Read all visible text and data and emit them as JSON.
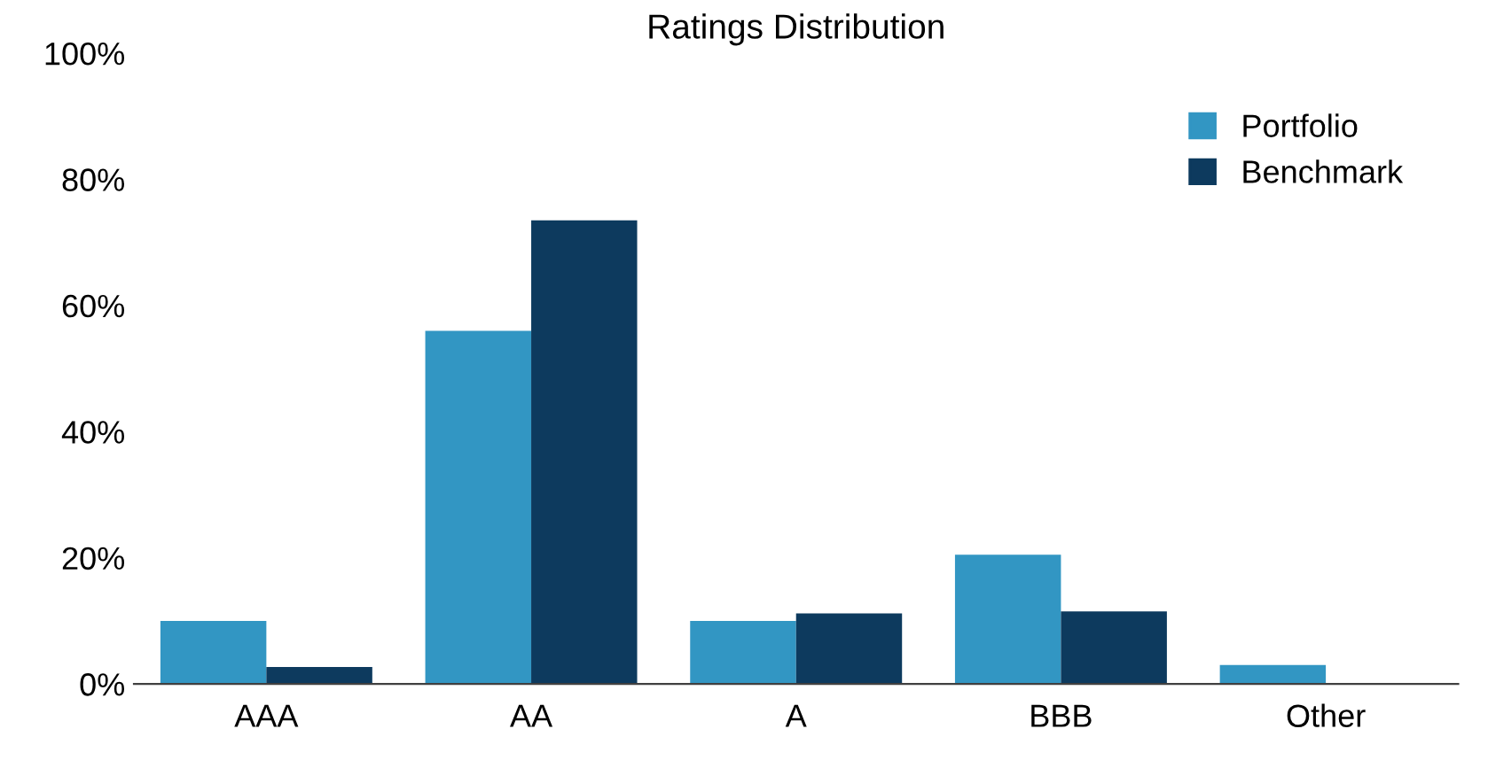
{
  "chart_data": {
    "type": "bar",
    "title": "Ratings Distribution",
    "categories": [
      "AAA",
      "AA",
      "A",
      "BBB",
      "Other"
    ],
    "series": [
      {
        "name": "Portfolio",
        "color": "#3296c3",
        "values": [
          10,
          56,
          10,
          20.5,
          3
        ]
      },
      {
        "name": "Benchmark",
        "color": "#0d3a5e",
        "values": [
          2.7,
          73.5,
          11.2,
          11.5,
          0
        ]
      }
    ],
    "ylim": [
      0,
      100
    ],
    "yticks": [
      {
        "value": 0,
        "label": "0%"
      },
      {
        "value": 20,
        "label": "20%"
      },
      {
        "value": 40,
        "label": "40%"
      },
      {
        "value": 60,
        "label": "60%"
      },
      {
        "value": 80,
        "label": "80%"
      },
      {
        "value": 100,
        "label": "100%"
      }
    ],
    "grid": false,
    "legend": "top right"
  }
}
